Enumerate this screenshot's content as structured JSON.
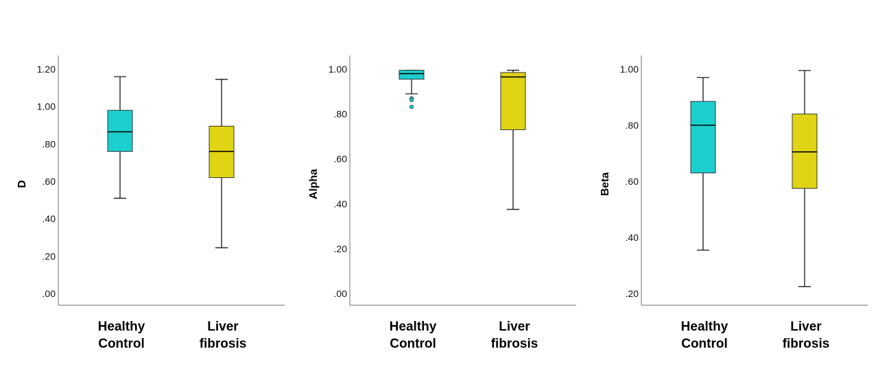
{
  "chart_data": [
    {
      "type": "boxplot",
      "ylabel": "D",
      "ylim": [
        0,
        1.27
      ],
      "ticks": [
        0,
        0.2,
        0.4,
        0.6,
        0.8,
        1.0,
        1.2
      ],
      "tick_labels": [
        ".00",
        ".20",
        ".40",
        ".60",
        ".80",
        "1.00",
        "1.20"
      ],
      "categories": [
        {
          "label": [
            "Healthy",
            "Control"
          ],
          "color": "#1ccfcf",
          "min": 0.51,
          "q1": 0.76,
          "median": 0.865,
          "q3": 0.98,
          "max": 1.16,
          "outliers": []
        },
        {
          "label": [
            "Liver",
            "fibrosis"
          ],
          "color": "#e0d414",
          "min": 0.245,
          "q1": 0.62,
          "median": 0.76,
          "q3": 0.895,
          "max": 1.145,
          "outliers": []
        }
      ]
    },
    {
      "type": "boxplot",
      "ylabel": "Alpha",
      "ylim": [
        0,
        1.06
      ],
      "ticks": [
        0,
        0.2,
        0.4,
        0.6,
        0.8,
        1.0
      ],
      "tick_labels": [
        ".00",
        ".20",
        ".40",
        ".60",
        ".80",
        "1.00"
      ],
      "categories": [
        {
          "label": [
            "Healthy",
            "Control"
          ],
          "color": "#1ccfcf",
          "min": 0.89,
          "q1": 0.955,
          "median": 0.98,
          "q3": 0.995,
          "max": 0.995,
          "outliers": [
            0.87,
            0.862,
            0.832
          ]
        },
        {
          "label": [
            "Liver",
            "fibrosis"
          ],
          "color": "#e0d414",
          "min": 0.375,
          "q1": 0.73,
          "median": 0.965,
          "q3": 0.985,
          "max": 0.995,
          "outliers": []
        }
      ]
    },
    {
      "type": "boxplot",
      "ylabel": "Beta",
      "ylim": [
        0.16,
        1.06
      ],
      "ticks": [
        0.2,
        0.4,
        0.6,
        0.8,
        1.0
      ],
      "tick_labels": [
        ".20",
        ".40",
        ".60",
        ".80",
        "1.00"
      ],
      "categories": [
        {
          "label": [
            "Healthy",
            "Control"
          ],
          "color": "#1ccfcf",
          "min": 0.355,
          "q1": 0.63,
          "median": 0.8,
          "q3": 0.885,
          "max": 0.97,
          "outliers": []
        },
        {
          "label": [
            "Liver",
            "fibrosis"
          ],
          "color": "#e0d414",
          "min": 0.225,
          "q1": 0.575,
          "median": 0.705,
          "q3": 0.84,
          "max": 0.995,
          "outliers": []
        }
      ]
    }
  ]
}
